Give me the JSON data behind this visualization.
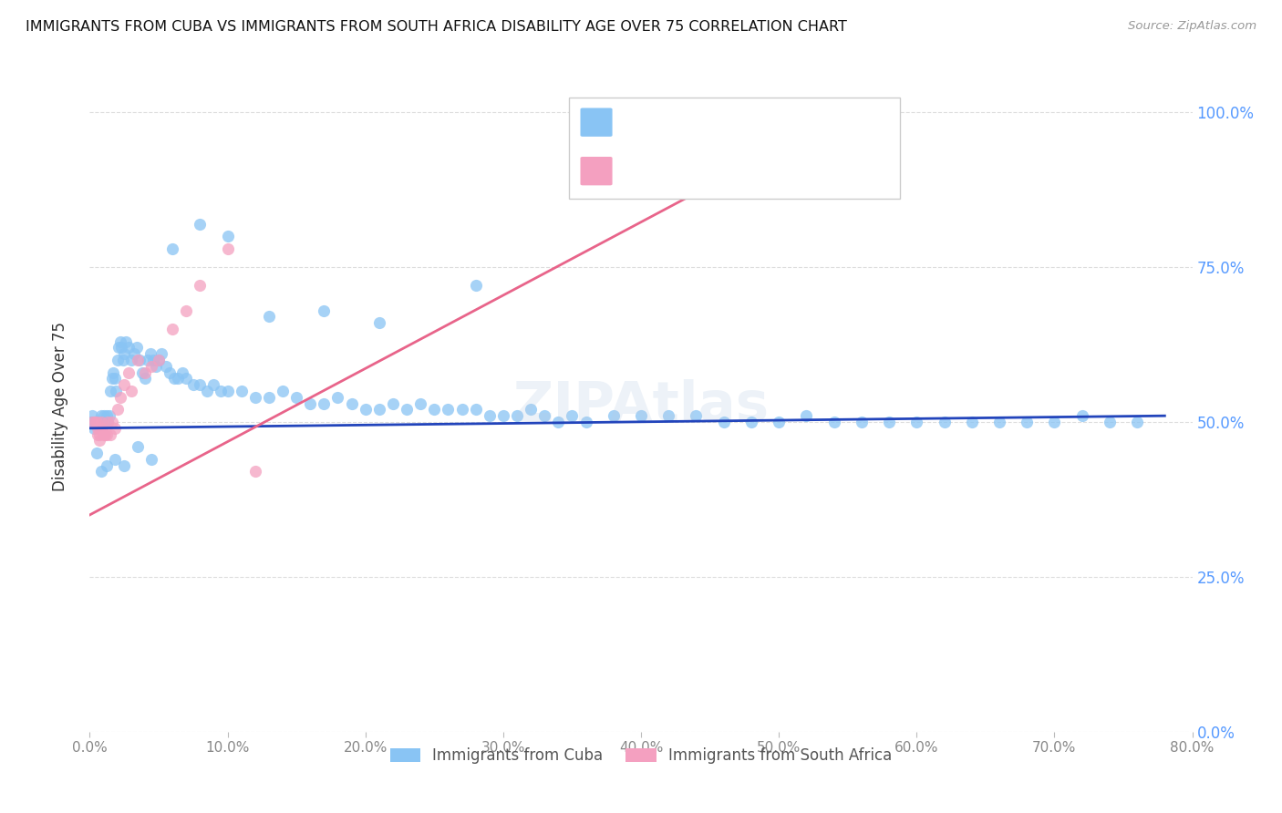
{
  "title": "IMMIGRANTS FROM CUBA VS IMMIGRANTS FROM SOUTH AFRICA DISABILITY AGE OVER 75 CORRELATION CHART",
  "source": "Source: ZipAtlas.com",
  "ylabel": "Disability Age Over 75",
  "legend_cuba": "Immigrants from Cuba",
  "legend_sa": "Immigrants from South Africa",
  "color_cuba": "#89C4F4",
  "color_sa": "#F4A0C0",
  "color_line_cuba": "#2244BB",
  "color_line_sa": "#E8648A",
  "xlim": [
    0.0,
    0.8
  ],
  "ylim": [
    0.0,
    1.05
  ],
  "cuba_x": [
    0.001,
    0.002,
    0.002,
    0.003,
    0.003,
    0.004,
    0.004,
    0.005,
    0.005,
    0.006,
    0.006,
    0.007,
    0.007,
    0.008,
    0.008,
    0.009,
    0.009,
    0.01,
    0.01,
    0.011,
    0.011,
    0.012,
    0.012,
    0.013,
    0.014,
    0.015,
    0.016,
    0.017,
    0.018,
    0.019,
    0.02,
    0.021,
    0.022,
    0.023,
    0.024,
    0.025,
    0.026,
    0.028,
    0.03,
    0.032,
    0.034,
    0.036,
    0.038,
    0.04,
    0.042,
    0.044,
    0.046,
    0.048,
    0.05,
    0.052,
    0.055,
    0.058,
    0.061,
    0.064,
    0.067,
    0.07,
    0.075,
    0.08,
    0.085,
    0.09,
    0.095,
    0.1,
    0.11,
    0.12,
    0.13,
    0.14,
    0.15,
    0.16,
    0.17,
    0.18,
    0.19,
    0.2,
    0.21,
    0.22,
    0.23,
    0.24,
    0.25,
    0.26,
    0.27,
    0.28,
    0.29,
    0.3,
    0.31,
    0.32,
    0.33,
    0.34,
    0.35,
    0.36,
    0.38,
    0.4,
    0.42,
    0.44,
    0.46,
    0.48,
    0.5,
    0.52,
    0.54,
    0.56,
    0.58,
    0.6,
    0.62,
    0.64,
    0.66,
    0.68,
    0.7,
    0.72,
    0.74,
    0.76,
    0.005,
    0.008,
    0.012,
    0.018,
    0.025,
    0.035,
    0.045,
    0.06,
    0.08,
    0.1,
    0.13,
    0.17,
    0.21,
    0.28
  ],
  "cuba_y": [
    0.5,
    0.5,
    0.51,
    0.5,
    0.49,
    0.5,
    0.5,
    0.5,
    0.5,
    0.5,
    0.5,
    0.5,
    0.5,
    0.51,
    0.5,
    0.5,
    0.5,
    0.5,
    0.51,
    0.5,
    0.5,
    0.51,
    0.5,
    0.5,
    0.51,
    0.55,
    0.57,
    0.58,
    0.57,
    0.55,
    0.6,
    0.62,
    0.63,
    0.62,
    0.6,
    0.61,
    0.63,
    0.62,
    0.6,
    0.61,
    0.62,
    0.6,
    0.58,
    0.57,
    0.6,
    0.61,
    0.6,
    0.59,
    0.6,
    0.61,
    0.59,
    0.58,
    0.57,
    0.57,
    0.58,
    0.57,
    0.56,
    0.56,
    0.55,
    0.56,
    0.55,
    0.55,
    0.55,
    0.54,
    0.54,
    0.55,
    0.54,
    0.53,
    0.53,
    0.54,
    0.53,
    0.52,
    0.52,
    0.53,
    0.52,
    0.53,
    0.52,
    0.52,
    0.52,
    0.52,
    0.51,
    0.51,
    0.51,
    0.52,
    0.51,
    0.5,
    0.51,
    0.5,
    0.51,
    0.51,
    0.51,
    0.51,
    0.5,
    0.5,
    0.5,
    0.51,
    0.5,
    0.5,
    0.5,
    0.5,
    0.5,
    0.5,
    0.5,
    0.5,
    0.5,
    0.51,
    0.5,
    0.5,
    0.45,
    0.42,
    0.43,
    0.44,
    0.43,
    0.46,
    0.44,
    0.78,
    0.82,
    0.8,
    0.67,
    0.68,
    0.66,
    0.72
  ],
  "sa_x": [
    0.002,
    0.004,
    0.005,
    0.006,
    0.006,
    0.007,
    0.007,
    0.008,
    0.009,
    0.01,
    0.011,
    0.012,
    0.013,
    0.015,
    0.016,
    0.018,
    0.02,
    0.022,
    0.025,
    0.028,
    0.03,
    0.035,
    0.04,
    0.045,
    0.05,
    0.06,
    0.07,
    0.08,
    0.1,
    0.12,
    0.55
  ],
  "sa_y": [
    0.5,
    0.5,
    0.5,
    0.49,
    0.48,
    0.47,
    0.48,
    0.5,
    0.49,
    0.48,
    0.48,
    0.48,
    0.5,
    0.48,
    0.5,
    0.49,
    0.52,
    0.54,
    0.56,
    0.58,
    0.55,
    0.6,
    0.58,
    0.59,
    0.6,
    0.65,
    0.68,
    0.72,
    0.78,
    0.42,
    1.0
  ],
  "sa_trend_x0": 0.0,
  "sa_trend_y0": 0.35,
  "sa_trend_x1": 0.55,
  "sa_trend_y1": 1.0,
  "cuba_trend_x0": 0.0,
  "cuba_trend_y0": 0.49,
  "cuba_trend_x1": 0.78,
  "cuba_trend_y1": 0.51,
  "ytick_positions": [
    0.0,
    0.25,
    0.5,
    0.75,
    1.0
  ],
  "ytick_labels": [
    "0.0%",
    "25.0%",
    "50.0%",
    "75.0%",
    "100.0%"
  ],
  "xtick_positions": [
    0.0,
    0.1,
    0.2,
    0.3,
    0.4,
    0.5,
    0.6,
    0.7,
    0.8
  ],
  "xtick_labels": [
    "0.0%",
    "10.0%",
    "20.0%",
    "30.0%",
    "40.0%",
    "50.0%",
    "60.0%",
    "70.0%",
    "80.0%"
  ]
}
